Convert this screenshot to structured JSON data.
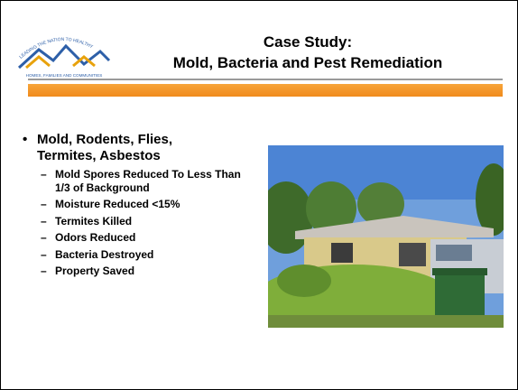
{
  "logo": {
    "arc_text": "LEADING THE NATION TO HEALTHY",
    "base_text": "HOMES, FAMILIES AND COMMUNITIES"
  },
  "header": {
    "title_line1": "Case Study:",
    "title_line2": "Mold, Bacteria and Pest Remediation"
  },
  "bullets": [
    {
      "text": "Mold, Rodents, Flies, Termites, Asbestos",
      "subitems": [
        "Mold Spores Reduced To Less Than 1/3 of Background",
        "Moisture Reduced <15%",
        "Termites Killed",
        "Odors Reduced",
        "Bacteria Destroyed",
        "Property Saved"
      ]
    }
  ]
}
